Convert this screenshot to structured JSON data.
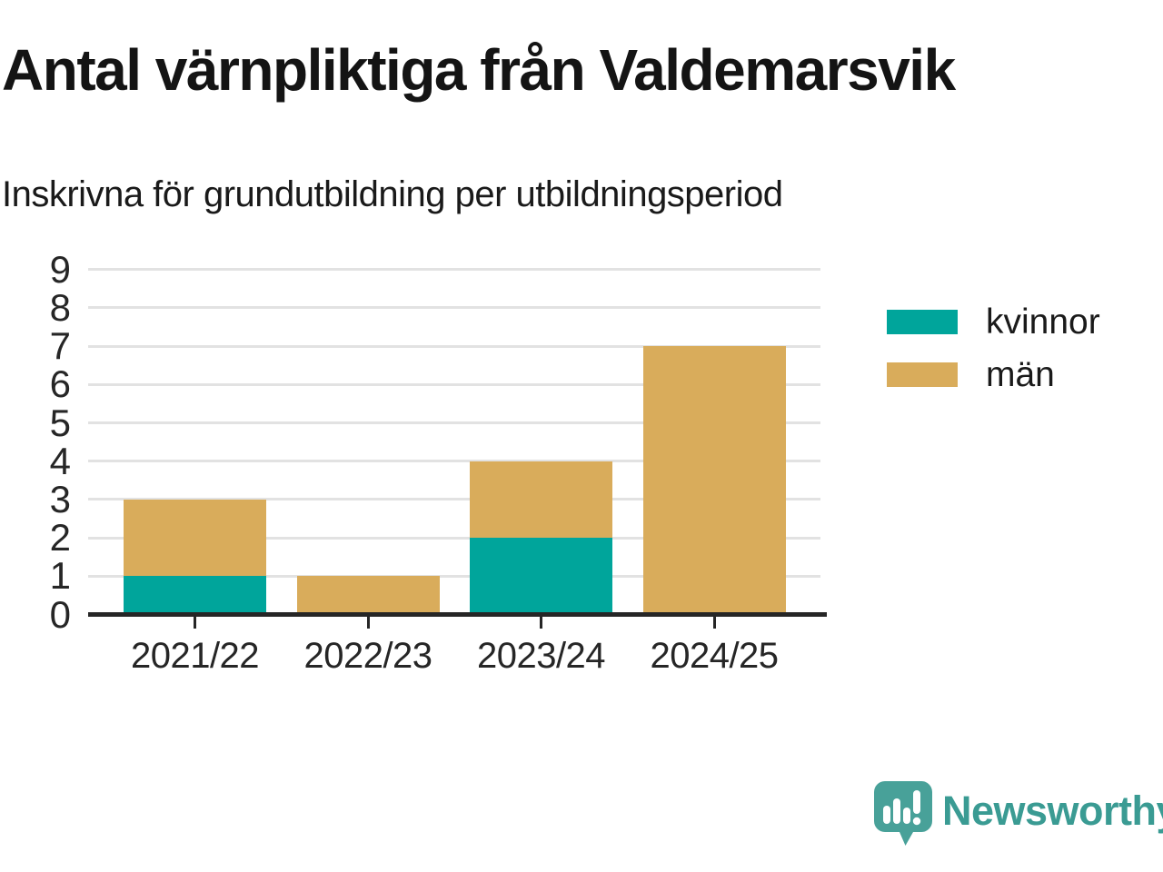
{
  "header": {
    "title": "Antal värnpliktiga från Valdemarsvik",
    "subtitle": "Inskrivna för grundutbildning per utbildningsperiod"
  },
  "chart_data": {
    "type": "bar",
    "stacked": true,
    "categories": [
      "2021/22",
      "2022/23",
      "2023/24",
      "2024/25"
    ],
    "series": [
      {
        "name": "kvinnor",
        "color": "#00a59b",
        "values": [
          1,
          0,
          2,
          0
        ]
      },
      {
        "name": "män",
        "color": "#d9ac5b",
        "values": [
          2,
          1,
          2,
          7
        ]
      }
    ],
    "totals": [
      3,
      1,
      4,
      7
    ],
    "title": "Antal värnpliktiga från Valdemarsvik",
    "subtitle": "Inskrivna för grundutbildning per utbildningsperiod",
    "xlabel": "",
    "ylabel": "",
    "ylim": [
      0,
      9
    ],
    "yticks": [
      0,
      1,
      2,
      3,
      4,
      5,
      6,
      7,
      8,
      9
    ],
    "grid": "horizontal",
    "legend_position": "right-of-plot"
  },
  "legend": {
    "items": [
      {
        "label": "kvinnor",
        "color": "#00a59b"
      },
      {
        "label": "män",
        "color": "#d9ac5b"
      }
    ]
  },
  "branding": {
    "brand_text": "Newsworthy",
    "brand_color": "#3a9b93",
    "logo_color": "#48a199"
  },
  "colors": {
    "kvinnor": "#00a59b",
    "man": "#d9ac5b",
    "text": "#1a1a1a",
    "axis": "#262626",
    "grid": "#e2e2e2",
    "background": "#ffffff"
  }
}
